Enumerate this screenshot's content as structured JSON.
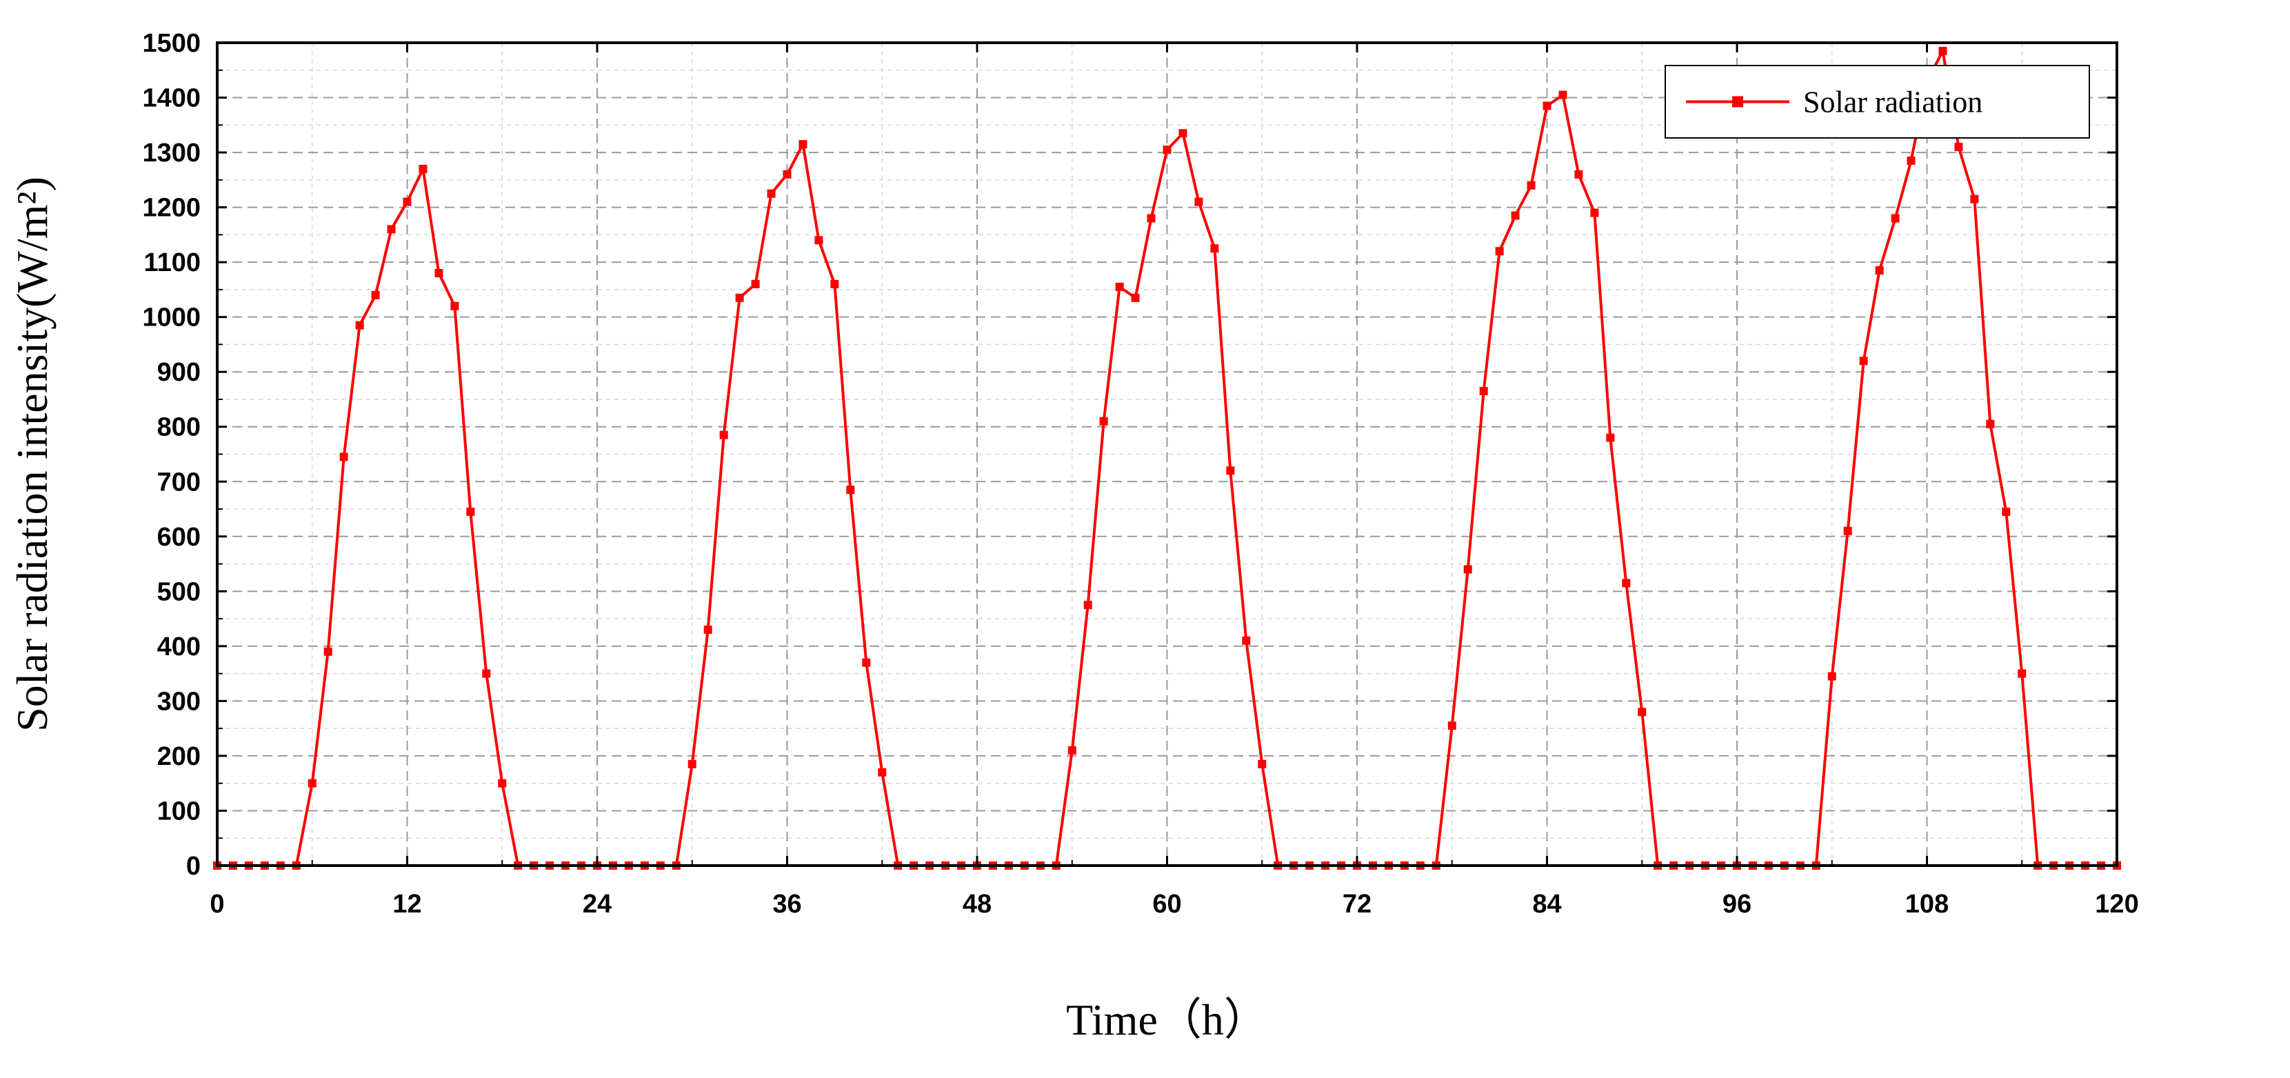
{
  "chart_data": {
    "type": "line",
    "xlabel": "Time（h）",
    "ylabel": "Solar radiation intensity(W/m²)",
    "xlim": [
      0,
      120
    ],
    "ylim": [
      0,
      1500
    ],
    "x_ticks": [
      "0",
      "12",
      "24",
      "36",
      "48",
      "60",
      "72",
      "84",
      "96",
      "108",
      "120"
    ],
    "y_ticks": [
      "0",
      "100",
      "200",
      "300",
      "400",
      "500",
      "600",
      "700",
      "800",
      "900",
      "1000",
      "1100",
      "1200",
      "1300",
      "1400",
      "1500"
    ],
    "grid": true,
    "legend_position": "top-right",
    "series": [
      {
        "name": "Solar radiation",
        "color": "#ff0000",
        "marker": "square",
        "x": [
          0,
          1,
          2,
          3,
          4,
          5,
          6,
          7,
          8,
          9,
          10,
          11,
          12,
          13,
          14,
          15,
          16,
          17,
          18,
          19,
          20,
          21,
          22,
          23,
          24,
          25,
          26,
          27,
          28,
          29,
          30,
          31,
          32,
          33,
          34,
          35,
          36,
          37,
          38,
          39,
          40,
          41,
          42,
          43,
          44,
          45,
          46,
          47,
          48,
          49,
          50,
          51,
          52,
          53,
          54,
          55,
          56,
          57,
          58,
          59,
          60,
          61,
          62,
          63,
          64,
          65,
          66,
          67,
          68,
          69,
          70,
          71,
          72,
          73,
          74,
          75,
          76,
          77,
          78,
          79,
          80,
          81,
          82,
          83,
          84,
          85,
          86,
          87,
          88,
          89,
          90,
          91,
          92,
          93,
          94,
          95,
          96,
          97,
          98,
          99,
          100,
          101,
          102,
          103,
          104,
          105,
          106,
          107,
          108,
          109,
          110,
          111,
          112,
          113,
          114,
          115,
          116,
          117,
          118,
          119,
          120
        ],
        "y": [
          0,
          0,
          0,
          0,
          0,
          0,
          150,
          390,
          745,
          985,
          1040,
          1160,
          1210,
          1270,
          1080,
          1020,
          645,
          350,
          150,
          0,
          0,
          0,
          0,
          0,
          0,
          0,
          0,
          0,
          0,
          0,
          185,
          430,
          785,
          1035,
          1060,
          1225,
          1260,
          1315,
          1140,
          1060,
          685,
          370,
          170,
          0,
          0,
          0,
          0,
          0,
          0,
          0,
          0,
          0,
          0,
          0,
          210,
          475,
          810,
          1055,
          1035,
          1180,
          1305,
          1335,
          1210,
          1125,
          720,
          410,
          185,
          0,
          0,
          0,
          0,
          0,
          0,
          0,
          0,
          0,
          0,
          0,
          255,
          540,
          865,
          1120,
          1185,
          1240,
          1385,
          1405,
          1260,
          1190,
          780,
          515,
          280,
          0,
          0,
          0,
          0,
          0,
          0,
          0,
          0,
          0,
          0,
          0,
          345,
          610,
          920,
          1085,
          1180,
          1285,
          1430,
          1485,
          1310,
          1215,
          805,
          645,
          350,
          0,
          0,
          0,
          0,
          0,
          0
        ]
      }
    ]
  }
}
